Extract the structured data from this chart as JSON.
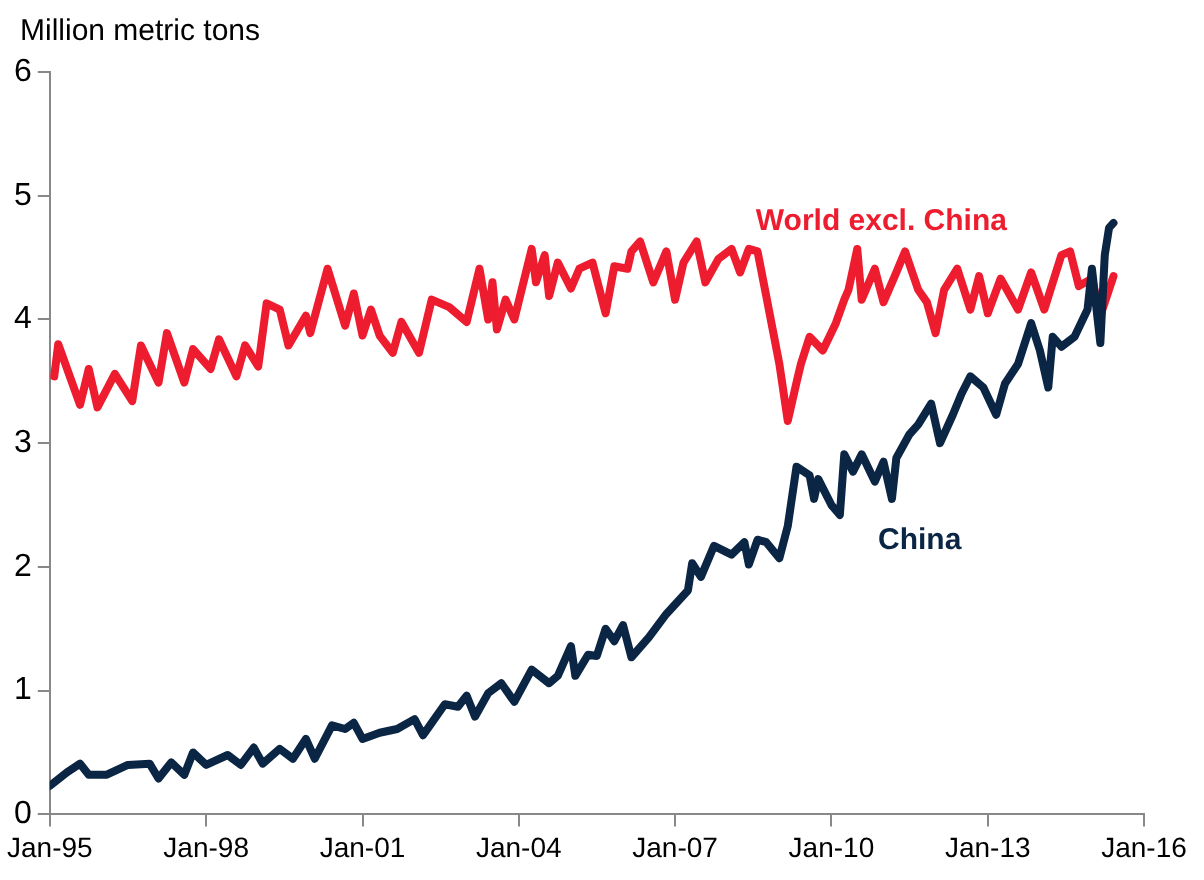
{
  "chart_data": {
    "type": "line",
    "ylabel": "Million metric tons",
    "xlim": [
      "1995-01",
      "2016-01"
    ],
    "xticks": [
      {
        "value": "1995-01",
        "label": "Jan-95"
      },
      {
        "value": "1998-01",
        "label": "Jan-98"
      },
      {
        "value": "2001-01",
        "label": "Jan-01"
      },
      {
        "value": "2004-01",
        "label": "Jan-04"
      },
      {
        "value": "2007-01",
        "label": "Jan-07"
      },
      {
        "value": "2010-01",
        "label": "Jan-10"
      },
      {
        "value": "2013-01",
        "label": "Jan-13"
      },
      {
        "value": "2016-01",
        "label": "Jan-16"
      }
    ],
    "ylim": [
      0,
      6
    ],
    "yticks": [
      0,
      1,
      2,
      3,
      4,
      5,
      6
    ],
    "grid": false,
    "legend": false,
    "marker": "none",
    "line_style": "solid",
    "series": [
      {
        "name": "World excl. China",
        "color": "#ed1c2e",
        "x": [
          "1995-02",
          "1995-03",
          "1995-08",
          "1995-10",
          "1995-12",
          "1996-04",
          "1996-08",
          "1996-10",
          "1997-02",
          "1997-04",
          "1997-08",
          "1997-10",
          "1998-02",
          "1998-04",
          "1998-08",
          "1998-10",
          "1999-01",
          "1999-03",
          "1999-06",
          "1999-08",
          "1999-12",
          "2000-01",
          "2000-05",
          "2000-09",
          "2000-11",
          "2001-01",
          "2001-03",
          "2001-05",
          "2001-08",
          "2001-10",
          "2002-02",
          "2002-05",
          "2002-09",
          "2003-01",
          "2003-04",
          "2003-06",
          "2003-07",
          "2003-08",
          "2003-10",
          "2003-12",
          "2004-04",
          "2004-05",
          "2004-07",
          "2004-08",
          "2004-10",
          "2005-01",
          "2005-03",
          "2005-06",
          "2005-09",
          "2005-11",
          "2006-02",
          "2006-03",
          "2006-05",
          "2006-08",
          "2006-11",
          "2007-01",
          "2007-03",
          "2007-06",
          "2007-08",
          "2007-11",
          "2008-02",
          "2008-04",
          "2008-06",
          "2008-08",
          "2008-10",
          "2009-01",
          "2009-03",
          "2009-05",
          "2009-06",
          "2009-08",
          "2009-11",
          "2010-02",
          "2010-04",
          "2010-05",
          "2010-07",
          "2010-08",
          "2010-11",
          "2011-01",
          "2011-04",
          "2011-06",
          "2011-09",
          "2011-11",
          "2012-01",
          "2012-03",
          "2012-06",
          "2012-09",
          "2012-11",
          "2013-01",
          "2013-04",
          "2013-08",
          "2013-11",
          "2014-02",
          "2014-06",
          "2014-08",
          "2014-10",
          "2015-01",
          "2015-03",
          "2015-06"
        ],
        "values": [
          3.54,
          3.8,
          3.31,
          3.6,
          3.29,
          3.56,
          3.34,
          3.79,
          3.49,
          3.89,
          3.49,
          3.76,
          3.6,
          3.84,
          3.54,
          3.79,
          3.62,
          4.13,
          4.08,
          3.79,
          4.03,
          3.89,
          4.41,
          3.95,
          4.21,
          3.87,
          4.08,
          3.87,
          3.73,
          3.98,
          3.73,
          4.16,
          4.1,
          3.98,
          4.41,
          4.0,
          4.3,
          3.92,
          4.16,
          4.0,
          4.57,
          4.3,
          4.52,
          4.19,
          4.46,
          4.25,
          4.41,
          4.46,
          4.05,
          4.43,
          4.41,
          4.55,
          4.63,
          4.3,
          4.55,
          4.16,
          4.46,
          4.63,
          4.3,
          4.49,
          4.57,
          4.38,
          4.57,
          4.55,
          4.19,
          3.64,
          3.18,
          3.49,
          3.64,
          3.86,
          3.75,
          3.97,
          4.16,
          4.24,
          4.57,
          4.16,
          4.41,
          4.14,
          4.38,
          4.55,
          4.24,
          4.14,
          3.89,
          4.24,
          4.41,
          4.08,
          4.35,
          4.05,
          4.33,
          4.08,
          4.38,
          4.08,
          4.52,
          4.55,
          4.27,
          4.33,
          4.03,
          4.35
        ]
      },
      {
        "name": "China",
        "color": "#0b2545",
        "x": [
          "1995-01",
          "1995-05",
          "1995-08",
          "1995-10",
          "1996-02",
          "1996-07",
          "1996-12",
          "1997-02",
          "1997-05",
          "1997-08",
          "1997-10",
          "1998-01",
          "1998-06",
          "1998-09",
          "1998-12",
          "1999-02",
          "1999-06",
          "1999-09",
          "1999-12",
          "2000-02",
          "2000-06",
          "2000-09",
          "2000-11",
          "2001-01",
          "2001-05",
          "2001-09",
          "2002-01",
          "2002-03",
          "2002-05",
          "2002-08",
          "2002-11",
          "2003-01",
          "2003-03",
          "2003-06",
          "2003-09",
          "2003-12",
          "2004-04",
          "2004-08",
          "2004-10",
          "2005-01",
          "2005-02",
          "2005-05",
          "2005-07",
          "2005-09",
          "2005-11",
          "2006-01",
          "2006-03",
          "2006-07",
          "2006-11",
          "2007-04",
          "2007-05",
          "2007-07",
          "2007-10",
          "2008-02",
          "2008-05",
          "2008-06",
          "2008-08",
          "2008-10",
          "2009-01",
          "2009-03",
          "2009-05",
          "2009-08",
          "2009-09",
          "2009-10",
          "2010-01",
          "2010-03",
          "2010-04",
          "2010-06",
          "2010-08",
          "2010-11",
          "2011-01",
          "2011-03",
          "2011-04",
          "2011-07",
          "2011-09",
          "2011-12",
          "2012-02",
          "2012-05",
          "2012-07",
          "2012-09",
          "2012-12",
          "2013-03",
          "2013-05",
          "2013-08",
          "2013-11",
          "2014-01",
          "2014-03",
          "2014-04",
          "2014-06",
          "2014-09",
          "2014-12",
          "2015-01",
          "2015-03",
          "2015-04",
          "2015-05",
          "2015-06"
        ],
        "values": [
          0.23,
          0.34,
          0.41,
          0.32,
          0.32,
          0.4,
          0.41,
          0.29,
          0.42,
          0.32,
          0.5,
          0.4,
          0.48,
          0.4,
          0.54,
          0.41,
          0.53,
          0.45,
          0.61,
          0.45,
          0.72,
          0.69,
          0.74,
          0.61,
          0.66,
          0.69,
          0.77,
          0.64,
          0.74,
          0.89,
          0.87,
          0.96,
          0.79,
          0.98,
          1.06,
          0.91,
          1.17,
          1.06,
          1.12,
          1.36,
          1.12,
          1.29,
          1.28,
          1.5,
          1.4,
          1.53,
          1.27,
          1.43,
          1.62,
          1.81,
          2.03,
          1.92,
          2.17,
          2.1,
          2.2,
          2.02,
          2.22,
          2.2,
          2.07,
          2.33,
          2.81,
          2.74,
          2.55,
          2.71,
          2.5,
          2.42,
          2.91,
          2.77,
          2.91,
          2.69,
          2.85,
          2.55,
          2.88,
          3.07,
          3.15,
          3.32,
          3.0,
          3.23,
          3.4,
          3.54,
          3.45,
          3.23,
          3.48,
          3.64,
          3.97,
          3.75,
          3.45,
          3.86,
          3.78,
          3.86,
          4.08,
          4.41,
          3.81,
          4.52,
          4.74,
          4.78
        ]
      }
    ]
  }
}
